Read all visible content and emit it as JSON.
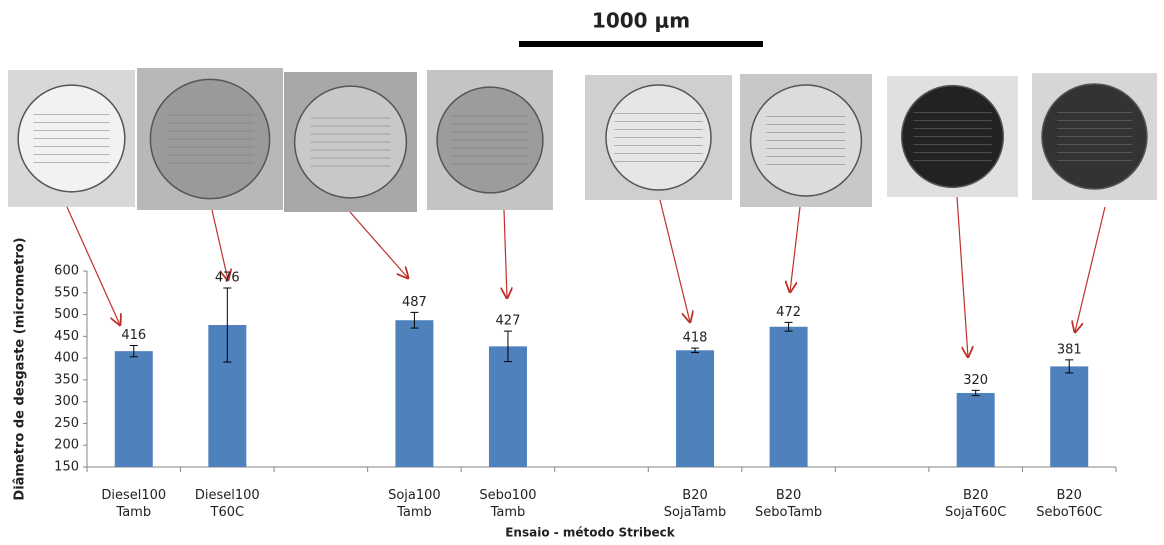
{
  "chart_data": {
    "type": "bar",
    "scale_label": "1000 μm",
    "y_label": "Diâmetro de desgaste (micrometro)",
    "x_label": "Ensaio - método Stribeck",
    "categories": [
      "Diesel100\nTamb",
      "Diesel100\nT60C",
      null,
      "Soja100\nTamb",
      "Sebo100\nTamb",
      null,
      "B20\nSojaTamb",
      "B20\nSeboTamb",
      null,
      "B20\nSojaT60C",
      "B20\nSeboT60C"
    ],
    "values": [
      416,
      476,
      null,
      487,
      427,
      null,
      418,
      472,
      null,
      320,
      381
    ],
    "errors": [
      13,
      85,
      null,
      18,
      35,
      null,
      5,
      10,
      null,
      6,
      15
    ],
    "color": "#4f81bd",
    "ylim": [
      150,
      600
    ],
    "yticks": [
      150,
      200,
      250,
      300,
      350,
      400,
      450,
      500,
      550,
      600
    ]
  }
}
